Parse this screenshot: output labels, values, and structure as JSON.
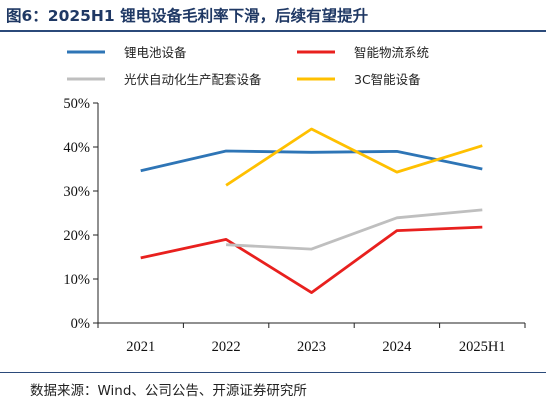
{
  "title": "图6：2025H1 锂电设备毛利率下滑，后续有望提升",
  "source": "数据来源：Wind、公司公告、开源证券研究所",
  "chart_data": {
    "type": "line",
    "categories": [
      "2021",
      "2022",
      "2023",
      "2024",
      "2025H1"
    ],
    "ylim": [
      0,
      50
    ],
    "yticks": [
      0,
      10,
      20,
      30,
      40,
      50
    ],
    "ytick_labels": [
      "0%",
      "10%",
      "20%",
      "30%",
      "40%",
      "50%"
    ],
    "grid": false,
    "legend_position": "top",
    "series": [
      {
        "name": "锂电池设备",
        "color": "#2e75b6",
        "values": [
          34.6,
          39.1,
          38.8,
          39.0,
          35.0
        ]
      },
      {
        "name": "智能物流系统",
        "color": "#e8201e",
        "values": [
          14.8,
          19.0,
          6.9,
          21.0,
          21.8
        ]
      },
      {
        "name": "光伏自动化生产配套设备",
        "color": "#bfbfbf",
        "values": [
          null,
          17.8,
          16.8,
          23.9,
          25.7
        ]
      },
      {
        "name": "3C智能设备",
        "color": "#ffc000",
        "values": [
          null,
          31.3,
          44.1,
          34.3,
          40.3
        ]
      }
    ]
  }
}
